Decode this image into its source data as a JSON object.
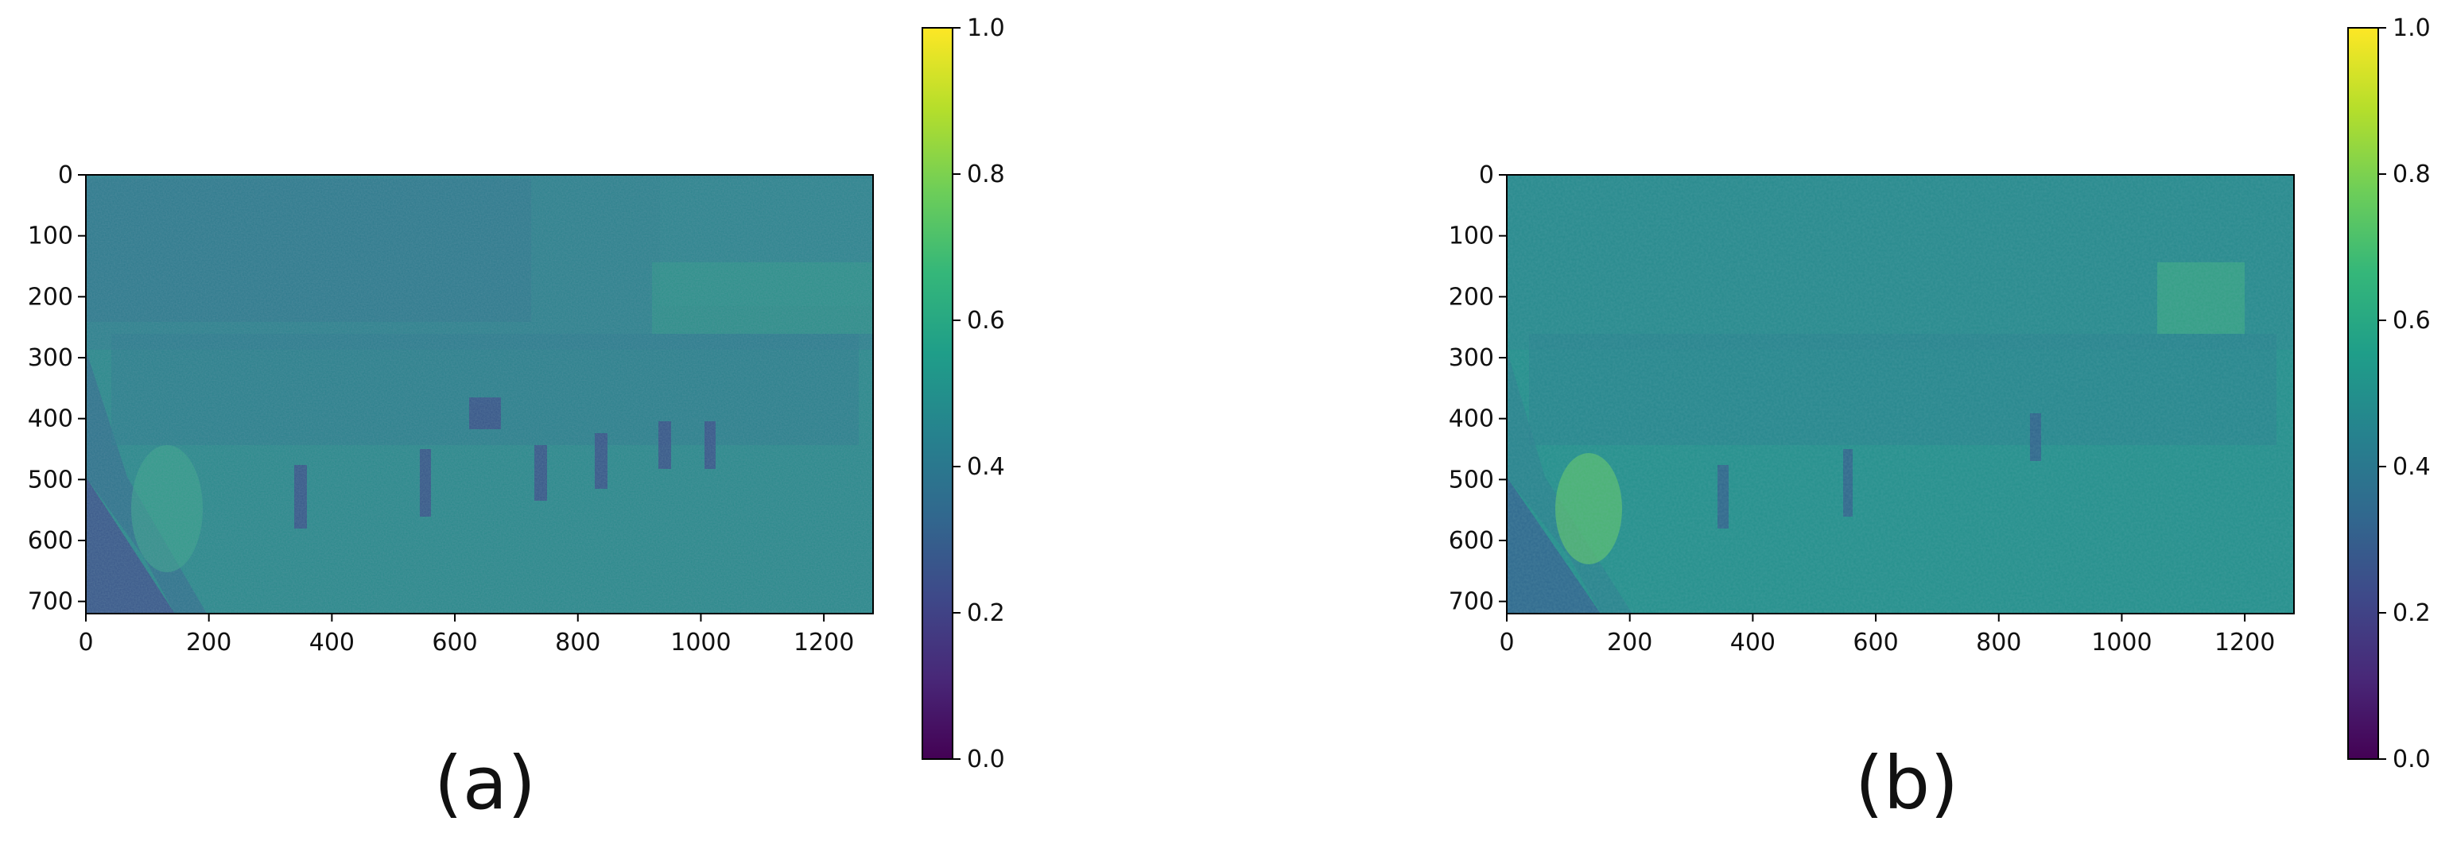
{
  "colormap": "viridis",
  "colormap_stops": [
    "#440154",
    "#482878",
    "#3e4989",
    "#31688e",
    "#26828e",
    "#1f9e89",
    "#35b779",
    "#6ece58",
    "#b5de2b",
    "#fde725"
  ],
  "panels": [
    {
      "caption": "(a)",
      "x_ticks": [
        "0",
        "200",
        "400",
        "600",
        "800",
        "1000",
        "1200"
      ],
      "y_ticks": [
        "0",
        "100",
        "200",
        "300",
        "400",
        "500",
        "600",
        "700"
      ],
      "colorbar_ticks": [
        "0.0",
        "0.2",
        "0.4",
        "0.6",
        "0.8",
        "1.0"
      ],
      "x_range": [
        0,
        1280
      ],
      "y_range": [
        0,
        720
      ],
      "colorbar_range": [
        0.0,
        1.0
      ],
      "background_color": "#2a8a8b"
    },
    {
      "caption": "(b)",
      "x_ticks": [
        "0",
        "200",
        "400",
        "600",
        "800",
        "1000",
        "1200"
      ],
      "y_ticks": [
        "0",
        "100",
        "200",
        "300",
        "400",
        "500",
        "600",
        "700"
      ],
      "colorbar_ticks": [
        "0.0",
        "0.2",
        "0.4",
        "0.6",
        "0.8",
        "1.0"
      ],
      "x_range": [
        0,
        1280
      ],
      "y_range": [
        0,
        720
      ],
      "colorbar_range": [
        0.0,
        1.0
      ],
      "background_color": "#24908c"
    }
  ]
}
